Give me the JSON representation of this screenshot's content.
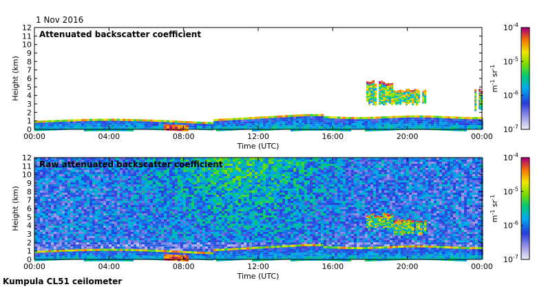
{
  "date_label": "1 Nov 2016",
  "footer_label": "Kumpula CL51 ceilometer",
  "chart_data": [
    {
      "type": "heatmap",
      "title": "Attenuated backscatter coefficient",
      "xlabel": "Time (UTC)",
      "ylabel": "Height (km)",
      "xticks": [
        "00:00",
        "04:00",
        "08:00",
        "12:00",
        "16:00",
        "20:00",
        "00:00"
      ],
      "xlim_hours": [
        0,
        24
      ],
      "ylim_km": [
        0,
        12
      ],
      "yticks": [
        "0",
        "1",
        "2",
        "3",
        "4",
        "5",
        "6",
        "7",
        "8",
        "9",
        "10",
        "11",
        "12"
      ],
      "colorbar": {
        "scale": "log",
        "range": [
          1e-07,
          0.0001
        ],
        "ticks": [
          "10-7",
          "10-6",
          "10-5",
          "10-4"
        ],
        "unit_label": "m-1 sr-1"
      },
      "features": [
        {
          "kind": "boundary-layer",
          "time_hours": [
            0,
            24
          ],
          "top_km": [
            1.0,
            1.8
          ]
        },
        {
          "kind": "cloud",
          "time_hours": [
            17.8,
            21.0
          ],
          "base_km": 2.8,
          "top_km": 5.8
        },
        {
          "kind": "cloud",
          "time_hours": [
            23.6,
            24.0
          ],
          "base_km": 2.0,
          "top_km": 4.8
        }
      ]
    },
    {
      "type": "heatmap",
      "title": "Raw attenuated backscatter coefficient",
      "xlabel": "Time (UTC)",
      "ylabel": "Height (km)",
      "xticks": [
        "00:00",
        "04:00",
        "08:00",
        "12:00",
        "16:00",
        "20:00",
        "00:00"
      ],
      "xlim_hours": [
        0,
        24
      ],
      "ylim_km": [
        0,
        12
      ],
      "yticks": [
        "0",
        "1",
        "2",
        "3",
        "4",
        "5",
        "6",
        "7",
        "8",
        "9",
        "10",
        "11",
        "12"
      ],
      "colorbar": {
        "scale": "log",
        "range": [
          1e-07,
          0.0001
        ],
        "ticks": [
          "10-7",
          "10-6",
          "10-5",
          "10-4"
        ],
        "unit_label": "m-1 sr-1"
      },
      "features": [
        {
          "kind": "noise-field",
          "time_hours": [
            0,
            24
          ],
          "range_km": [
            2,
            12
          ]
        },
        {
          "kind": "boundary-layer",
          "time_hours": [
            0,
            24
          ],
          "top_km": [
            1.0,
            1.8
          ]
        },
        {
          "kind": "cloud",
          "time_hours": [
            17.8,
            21.0
          ],
          "base_km": 3.5,
          "top_km": 5.5
        }
      ]
    }
  ]
}
